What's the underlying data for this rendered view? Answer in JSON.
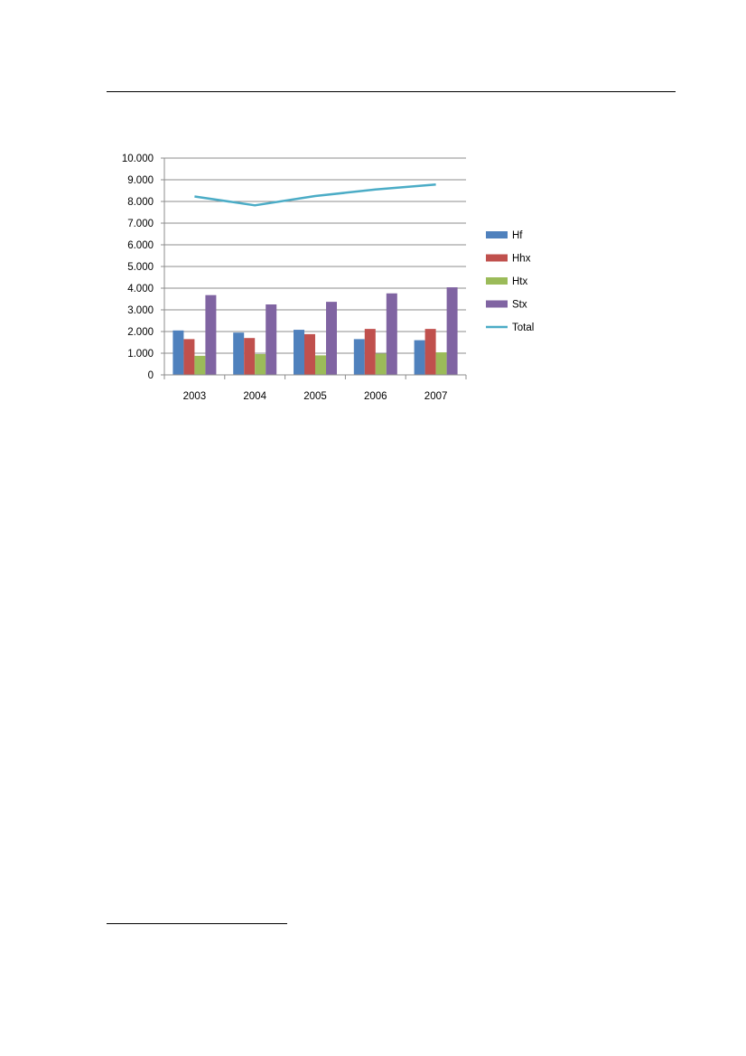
{
  "chart_data": {
    "type": "bar",
    "categories": [
      "2003",
      "2004",
      "2005",
      "2006",
      "2007"
    ],
    "series": [
      {
        "name": "Hf",
        "type": "bar",
        "color": "#4F81BD",
        "values": [
          2050,
          1950,
          2080,
          1650,
          1600
        ]
      },
      {
        "name": "Hhx",
        "type": "bar",
        "color": "#C0504D",
        "values": [
          1650,
          1700,
          1880,
          2120,
          2120
        ]
      },
      {
        "name": "Htx",
        "type": "bar",
        "color": "#9BBB59",
        "values": [
          880,
          960,
          900,
          980,
          1040
        ]
      },
      {
        "name": "Stx",
        "type": "bar",
        "color": "#8064A2",
        "values": [
          3680,
          3250,
          3370,
          3760,
          4040
        ]
      },
      {
        "name": "Total",
        "type": "line",
        "color": "#4BACC6",
        "values": [
          8230,
          7820,
          8250,
          8550,
          8780
        ]
      }
    ],
    "ylim": [
      0,
      10000
    ],
    "yticks": [
      0,
      1000,
      2000,
      3000,
      4000,
      5000,
      6000,
      7000,
      8000,
      9000,
      10000
    ],
    "ytick_labels": [
      "0",
      "1.000",
      "2.000",
      "3.000",
      "4.000",
      "5.000",
      "6.000",
      "7.000",
      "8.000",
      "9.000",
      "10.000"
    ],
    "grid": true,
    "legend": "right",
    "title": "",
    "xlabel": "",
    "ylabel": ""
  }
}
